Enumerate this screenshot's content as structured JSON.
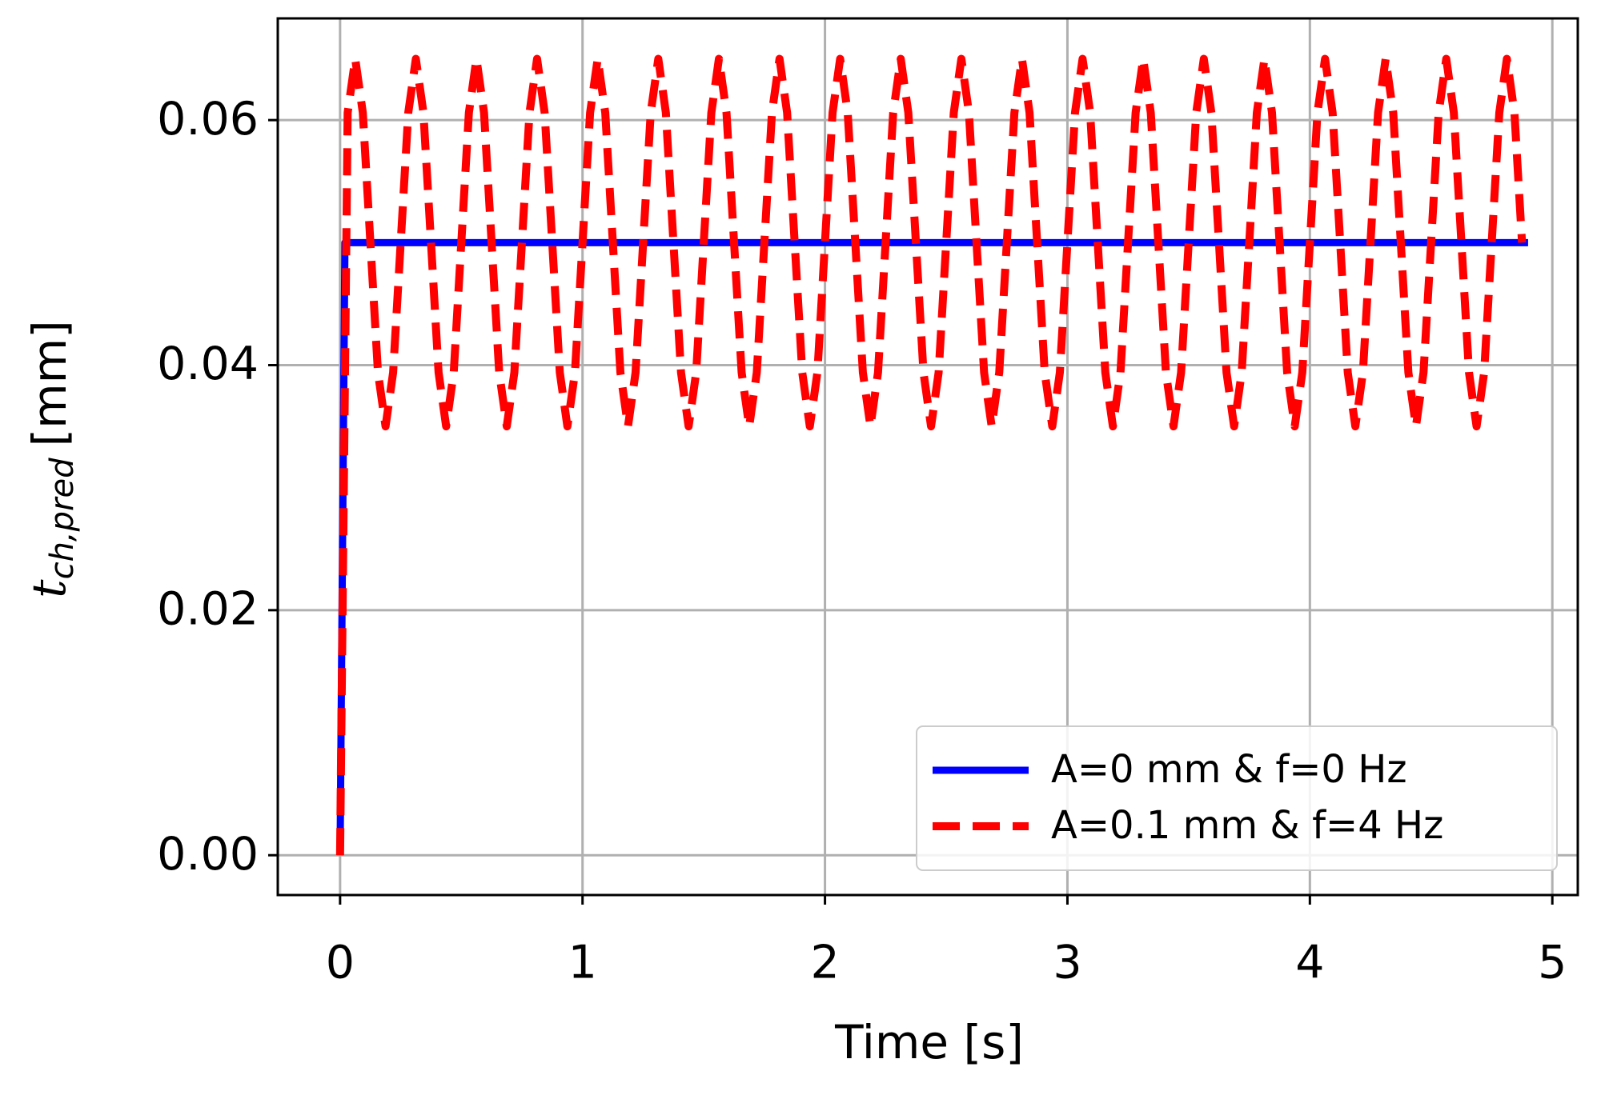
{
  "chart_data": {
    "type": "line",
    "x_label": "Time [s]",
    "y_label": "t",
    "y_label_subscript": "ch,pred",
    "y_label_unit": "[mm]",
    "xlim": [
      -0.257,
      5.105
    ],
    "ylim": [
      -0.00325,
      0.0683
    ],
    "xticks": [
      0,
      1,
      2,
      3,
      4,
      5
    ],
    "yticks": [
      {
        "value": 0,
        "label": "0.00"
      },
      0.02,
      0.04,
      0.06
    ],
    "grid": true,
    "legend": "lower right",
    "series": [
      {
        "name": "A=0 mm & f=0 Hz",
        "color": "#0000ff",
        "style": "solid",
        "x": [
          0,
          0.02,
          4.9
        ],
        "values": [
          0,
          0.05,
          0.05
        ]
      },
      {
        "name": "A=0.1 mm & f=4 Hz",
        "color": "#ff0000",
        "style": "dashed",
        "x": [
          0,
          0.03125,
          0.0625,
          0.09375,
          0.125,
          0.15625,
          0.1875,
          0.21875,
          0.25,
          0.28125,
          0.3125,
          0.34375,
          0.375,
          0.40625,
          0.4375,
          0.46875,
          0.5,
          0.53125,
          0.5625,
          0.59375,
          0.625,
          0.65625,
          0.6875,
          0.71875,
          0.75,
          0.78125,
          0.8125,
          0.84375,
          0.875,
          0.90625,
          0.9375,
          0.96875,
          1,
          1.03125,
          1.0625,
          1.09375,
          1.125,
          1.15625,
          1.1875,
          1.21875,
          1.25,
          1.28125,
          1.3125,
          1.34375,
          1.375,
          1.40625,
          1.4375,
          1.46875,
          1.5,
          1.53125,
          1.5625,
          1.59375,
          1.625,
          1.65625,
          1.6875,
          1.71875,
          1.75,
          1.78125,
          1.8125,
          1.84375,
          1.875,
          1.90625,
          1.9375,
          1.96875,
          2,
          2.03125,
          2.0625,
          2.09375,
          2.125,
          2.15625,
          2.1875,
          2.21875,
          2.25,
          2.28125,
          2.3125,
          2.34375,
          2.375,
          2.40625,
          2.4375,
          2.46875,
          2.5,
          2.53125,
          2.5625,
          2.59375,
          2.625,
          2.65625,
          2.6875,
          2.71875,
          2.75,
          2.78125,
          2.8125,
          2.84375,
          2.875,
          2.90625,
          2.9375,
          2.96875,
          3,
          3.03125,
          3.0625,
          3.09375,
          3.125,
          3.15625,
          3.1875,
          3.21875,
          3.25,
          3.28125,
          3.3125,
          3.34375,
          3.375,
          3.40625,
          3.4375,
          3.46875,
          3.5,
          3.53125,
          3.5625,
          3.59375,
          3.625,
          3.65625,
          3.6875,
          3.71875,
          3.75,
          3.78125,
          3.8125,
          3.84375,
          3.875,
          3.90625,
          3.9375,
          3.96875,
          4,
          4.03125,
          4.0625,
          4.09375,
          4.125,
          4.15625,
          4.1875,
          4.21875,
          4.25,
          4.28125,
          4.3125,
          4.34375,
          4.375,
          4.40625,
          4.4375,
          4.46875,
          4.5,
          4.53125,
          4.5625,
          4.59375,
          4.625,
          4.65625,
          4.6875,
          4.71875,
          4.75,
          4.78125,
          4.8125,
          4.84375,
          4.875
        ],
        "values": [
          0,
          0.0606,
          0.065,
          0.0606,
          0.05,
          0.0394,
          0.035,
          0.0394,
          0.05,
          0.0606,
          0.065,
          0.0606,
          0.05,
          0.0394,
          0.035,
          0.0394,
          0.05,
          0.0606,
          0.065,
          0.0606,
          0.05,
          0.0394,
          0.035,
          0.0394,
          0.05,
          0.0606,
          0.065,
          0.0606,
          0.05,
          0.0394,
          0.035,
          0.0394,
          0.05,
          0.0606,
          0.065,
          0.0606,
          0.05,
          0.0394,
          0.035,
          0.0394,
          0.05,
          0.0606,
          0.065,
          0.0606,
          0.05,
          0.0394,
          0.035,
          0.0394,
          0.05,
          0.0606,
          0.065,
          0.0606,
          0.05,
          0.0394,
          0.035,
          0.0394,
          0.05,
          0.0606,
          0.065,
          0.0606,
          0.05,
          0.0394,
          0.035,
          0.0394,
          0.05,
          0.0606,
          0.065,
          0.0606,
          0.05,
          0.0394,
          0.035,
          0.0394,
          0.05,
          0.0606,
          0.065,
          0.0606,
          0.05,
          0.0394,
          0.035,
          0.0394,
          0.05,
          0.0606,
          0.065,
          0.0606,
          0.05,
          0.0394,
          0.035,
          0.0394,
          0.05,
          0.0606,
          0.065,
          0.0606,
          0.05,
          0.0394,
          0.035,
          0.0394,
          0.05,
          0.0606,
          0.065,
          0.0606,
          0.05,
          0.0394,
          0.035,
          0.0394,
          0.05,
          0.0606,
          0.065,
          0.0606,
          0.05,
          0.0394,
          0.035,
          0.0394,
          0.05,
          0.0606,
          0.065,
          0.0606,
          0.05,
          0.0394,
          0.035,
          0.0394,
          0.05,
          0.0606,
          0.065,
          0.0606,
          0.05,
          0.0394,
          0.035,
          0.0394,
          0.05,
          0.0606,
          0.065,
          0.0606,
          0.05,
          0.0394,
          0.035,
          0.0394,
          0.05,
          0.0606,
          0.065,
          0.0606,
          0.05,
          0.0394,
          0.035,
          0.0394,
          0.05,
          0.0606,
          0.065,
          0.0606,
          0.05,
          0.0394,
          0.035,
          0.0394,
          0.05,
          0.0606,
          0.065,
          0.0606,
          0.05
        ]
      }
    ]
  }
}
